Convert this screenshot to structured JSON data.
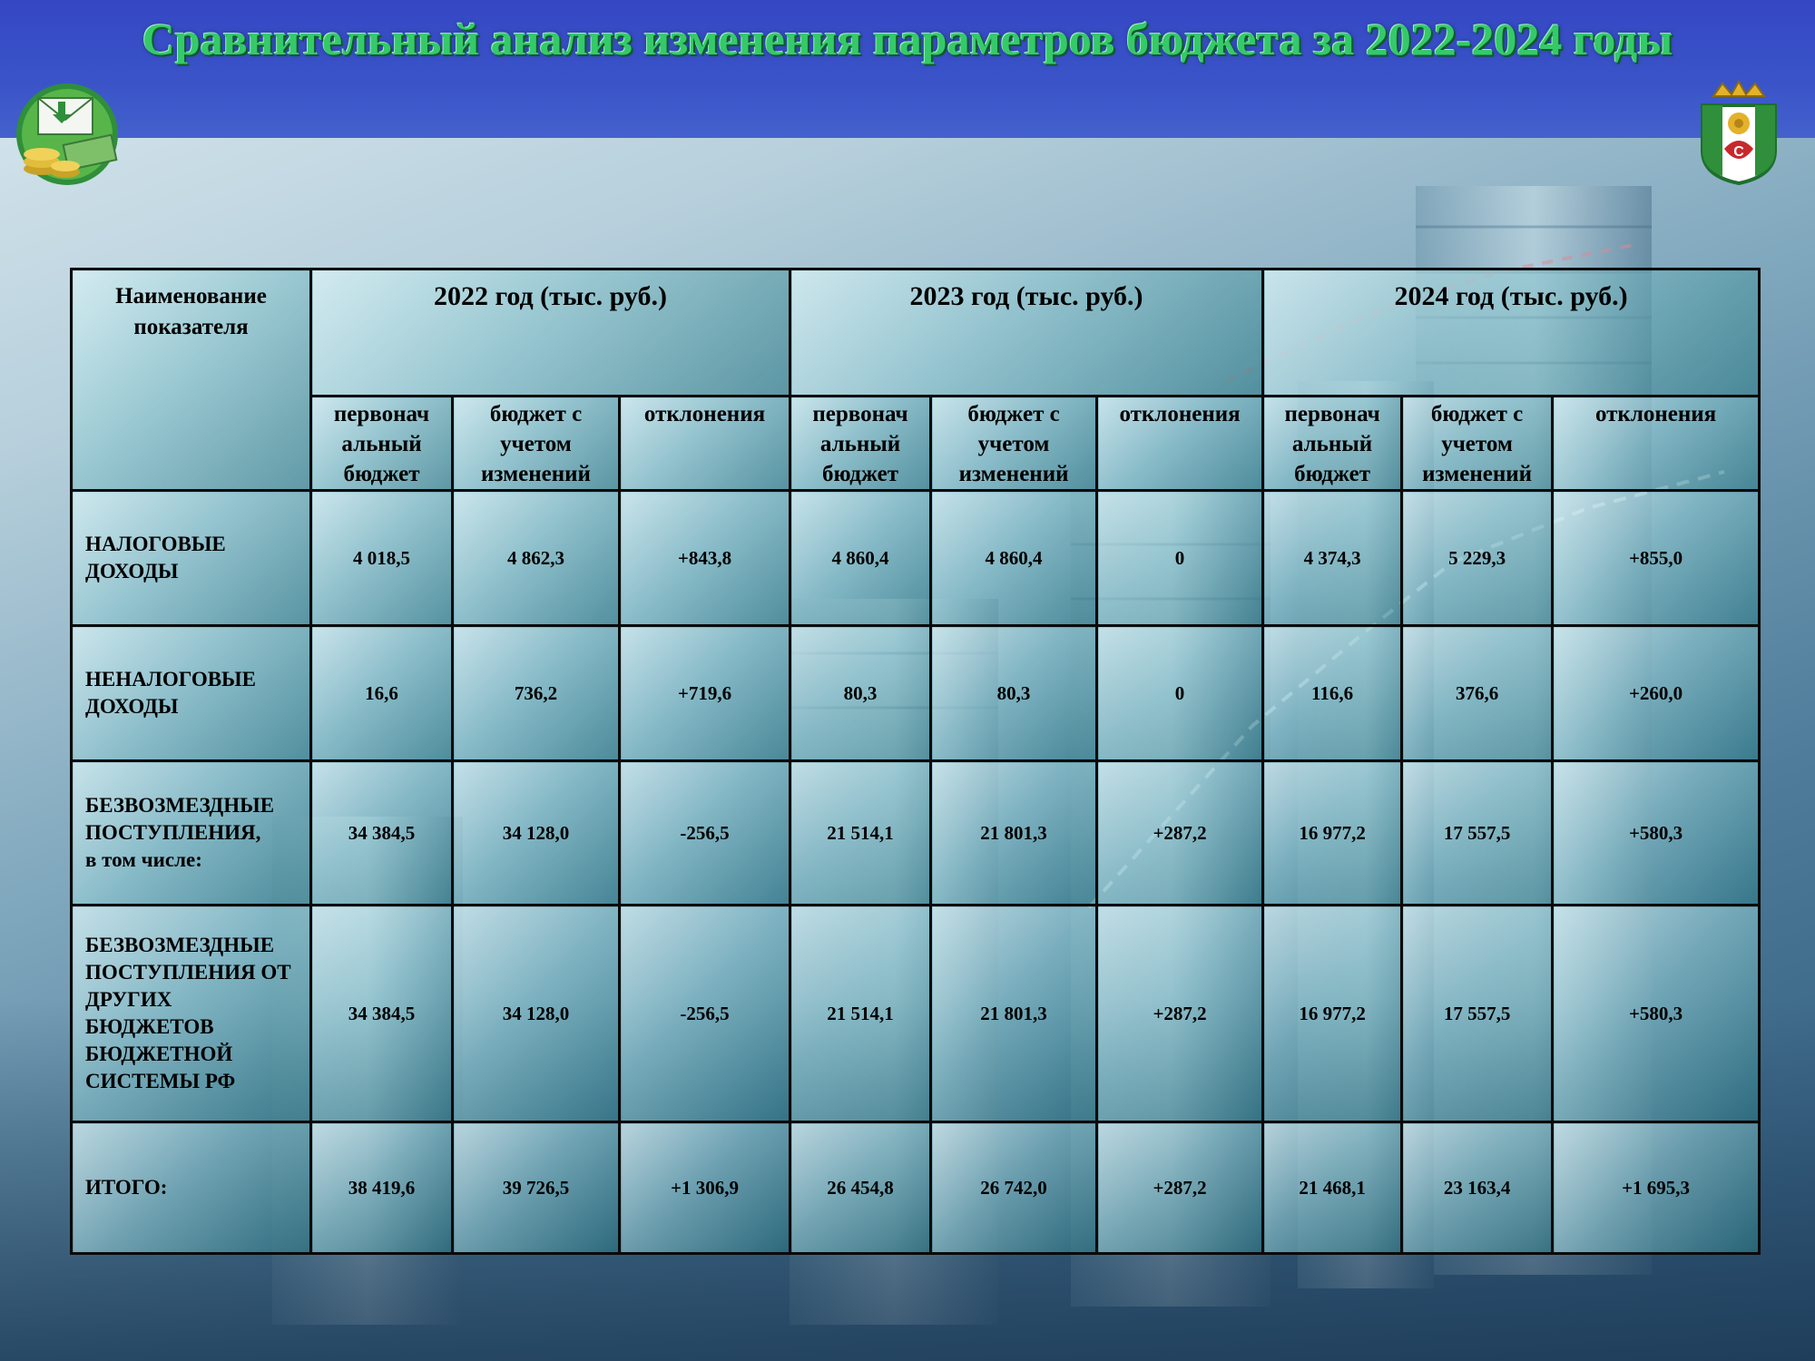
{
  "title": "Сравнительный анализ изменения параметров бюджета за 2022-2024 годы",
  "logos": {
    "left": "money-envelope-icon",
    "right": "coat-of-arms-icon"
  },
  "colors": {
    "header": "#3a54c8",
    "title": "#35c96a",
    "cell": "#8cc6ce"
  },
  "table": {
    "name_header": "Наименование показателя",
    "years": [
      "2022 год (тыс. руб.)",
      "2023 год (тыс. руб.)",
      "2024 год (тыс. руб.)"
    ],
    "subheaders": [
      "первонач альный бюджет",
      "бюджет с учетом изменений",
      "отклонения"
    ],
    "rows": [
      {
        "label": "НАЛОГОВЫЕ ДОХОДЫ",
        "values": [
          "4 018,5",
          "4 862,3",
          "+843,8",
          "4 860,4",
          "4 860,4",
          "0",
          "4 374,3",
          "5 229,3",
          "+855,0"
        ]
      },
      {
        "label": "НЕНАЛОГОВЫЕ ДОХОДЫ",
        "values": [
          "16,6",
          "736,2",
          "+719,6",
          "80,3",
          "80,3",
          "0",
          "116,6",
          "376,6",
          "+260,0"
        ]
      },
      {
        "label": "БЕЗВОЗМЕЗДНЫЕ ПОСТУПЛЕНИЯ,",
        "sublabel": "в том числе:",
        "values": [
          "34 384,5",
          "34 128,0",
          "-256,5",
          "21 514,1",
          "21 801,3",
          "+287,2",
          "16 977,2",
          "17 557,5",
          "+580,3"
        ]
      },
      {
        "label": "БЕЗВОЗМЕЗДНЫЕ ПОСТУПЛЕНИЯ ОТ ДРУГИХ БЮДЖЕТОВ БЮДЖЕТНОЙ СИСТЕМЫ РФ",
        "values": [
          "34 384,5",
          "34 128,0",
          "-256,5",
          "21 514,1",
          "21 801,3",
          "+287,2",
          "16 977,2",
          "17 557,5",
          "+580,3"
        ]
      },
      {
        "label": "ИТОГО:",
        "values": [
          "38 419,6",
          "39 726,5",
          "+1 306,9",
          "26 454,8",
          "26 742,0",
          "+287,2",
          "21 468,1",
          "23 163,4",
          "+1 695,3"
        ]
      }
    ]
  }
}
